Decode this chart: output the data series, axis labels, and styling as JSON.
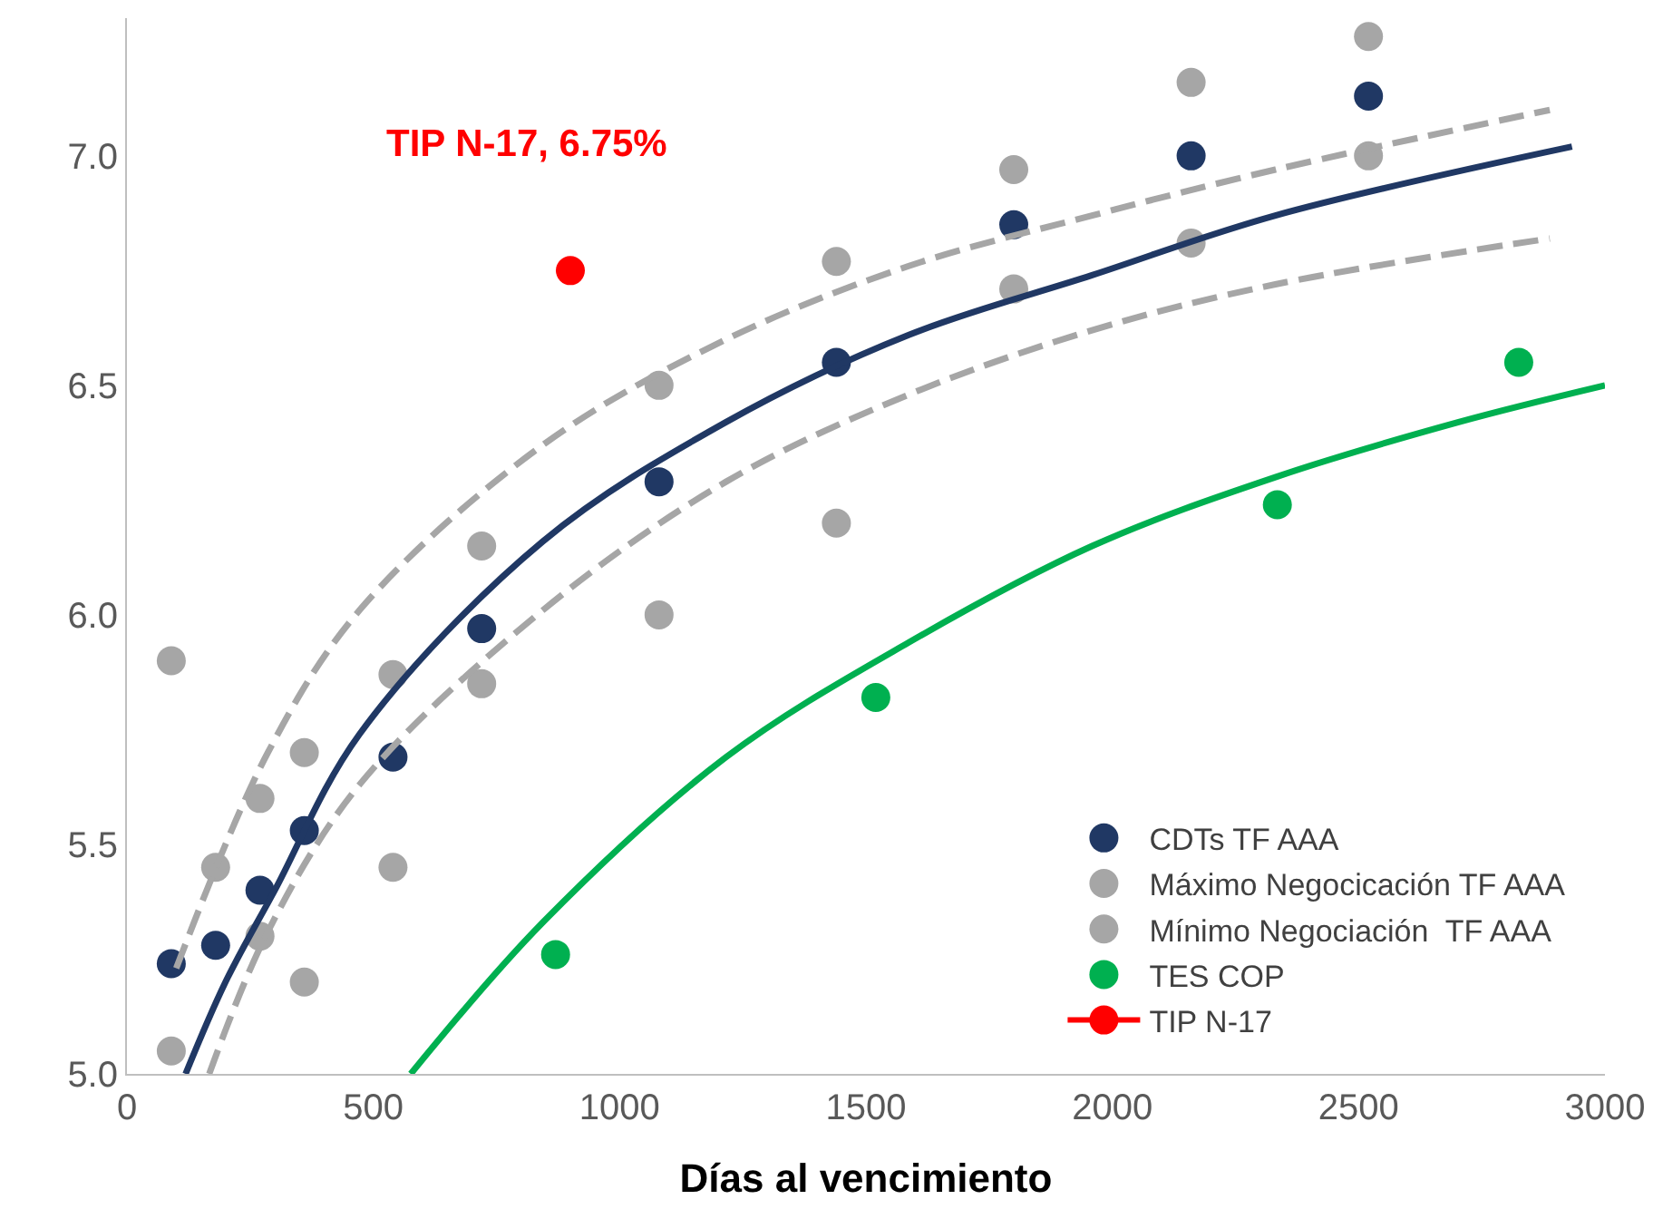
{
  "chart_data": {
    "type": "scatter",
    "xlabel": "Días al vencimiento",
    "xlim": [
      0,
      3000
    ],
    "xticks": [
      0,
      500,
      1000,
      1500,
      2000,
      2500,
      3000
    ],
    "ylim": [
      5,
      7.3
    ],
    "yticks": [
      {
        "value": 5,
        "label": "5.0"
      },
      {
        "value": 5.5,
        "label": "5.5"
      },
      {
        "value": 6,
        "label": "6.0"
      },
      {
        "value": 6.5,
        "label": "6.5"
      },
      {
        "value": 7,
        "label": "7.0"
      }
    ],
    "grid": false,
    "legend": "bottom right",
    "marker": "circle",
    "annotations": [
      "TIP N-17, 6.75%"
    ],
    "series": [
      {
        "name": "CDTs TF AAA",
        "color": "#203864",
        "x": [
          90,
          180,
          270,
          360,
          540,
          720,
          1080,
          1440,
          1800,
          2160,
          2520
        ],
        "values": [
          5.24,
          5.28,
          5.4,
          5.53,
          5.69,
          5.97,
          6.29,
          6.55,
          6.85,
          7.0,
          7.13
        ]
      },
      {
        "name": "Máximo Negocicación TF AAA",
        "color": "#a6a6a6",
        "x": [
          90,
          180,
          270,
          360,
          540,
          720,
          1080,
          1440,
          1800,
          2160,
          2520
        ],
        "values": [
          5.9,
          5.45,
          5.6,
          5.7,
          5.87,
          6.15,
          6.5,
          6.77,
          6.97,
          7.16,
          7.26
        ]
      },
      {
        "name": "Mínimo Negociación  TF AAA",
        "color": "#a6a6a6",
        "x": [
          90,
          180,
          270,
          360,
          540,
          720,
          1080,
          1440,
          1800,
          2160,
          2520
        ],
        "values": [
          5.05,
          null,
          5.3,
          5.2,
          5.45,
          5.85,
          6.0,
          6.2,
          6.71,
          6.81,
          7.0
        ]
      },
      {
        "name": "TES COP",
        "color": "#00b050",
        "x": [
          870,
          1520,
          2335,
          2825
        ],
        "values": [
          5.26,
          5.82,
          6.24,
          6.55
        ]
      },
      {
        "name": "TIP N-17",
        "color": "#ff0000",
        "x": [
          900
        ],
        "values": [
          6.75
        ]
      },
      {
        "type": "line",
        "color": "#203864",
        "marker": "none",
        "line_style": "solid",
        "x": [
          119,
          200,
          300,
          472,
          844,
          1216,
          1587,
          1959,
          2331,
          2933
        ],
        "values": [
          5.0,
          5.2,
          5.4,
          5.74,
          6.16,
          6.42,
          6.61,
          6.74,
          6.87,
          7.02
        ]
      },
      {
        "type": "line",
        "color": "#a6a6a6",
        "marker": "none",
        "line_style": "dashed",
        "x": [
          100,
          286,
          472,
          844,
          1216,
          1587,
          1959,
          2331,
          2888
        ],
        "values": [
          5.23,
          5.7,
          6.01,
          6.37,
          6.6,
          6.76,
          6.87,
          6.97,
          7.1
        ]
      },
      {
        "type": "line",
        "color": "#a6a6a6",
        "marker": "none",
        "line_style": "dashed",
        "x": [
          167,
          286,
          472,
          844,
          1216,
          1587,
          1959,
          2331,
          2888
        ],
        "values": [
          5.0,
          5.31,
          5.63,
          6.01,
          6.29,
          6.48,
          6.62,
          6.72,
          6.82
        ]
      },
      {
        "type": "line",
        "color": "#00b050",
        "marker": "none",
        "line_style": "solid",
        "x": [
          576,
          844,
          1216,
          1587,
          1959,
          2331,
          2703,
          3000
        ],
        "values": [
          5.0,
          5.33,
          5.69,
          5.94,
          6.15,
          6.3,
          6.42,
          6.5
        ]
      }
    ]
  }
}
